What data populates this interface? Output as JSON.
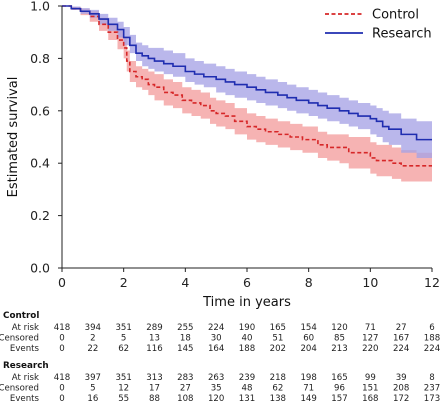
{
  "chart_data": {
    "type": "line",
    "subtype": "kaplan-meier-step",
    "ylabel": "Estimated survival",
    "xlabel": "Time in years",
    "xlim": [
      0,
      12
    ],
    "ylim": [
      0,
      1
    ],
    "x_ticks": [
      0,
      2,
      4,
      6,
      8,
      10,
      12
    ],
    "x_tick_labels": [
      "0",
      "2",
      "4",
      "6",
      "8",
      "10",
      "12"
    ],
    "y_ticks": [
      0,
      0.2,
      0.4,
      0.6,
      0.8,
      1.0
    ],
    "y_tick_labels": [
      "0.0",
      "0.2",
      "0.4",
      "0.6",
      "0.8",
      "1.0"
    ],
    "grid": false,
    "legend_position": "top-right",
    "series": [
      {
        "name": "Control",
        "color": "#d62728",
        "band_color": "#f4a6a6",
        "line_style": "dashed",
        "x": [
          0,
          0.3,
          0.6,
          0.9,
          1.2,
          1.5,
          1.8,
          2.0,
          2.1,
          2.2,
          2.4,
          2.6,
          2.8,
          3.0,
          3.3,
          3.6,
          3.9,
          4.2,
          4.5,
          4.8,
          5.0,
          5.3,
          5.6,
          6.0,
          6.3,
          6.6,
          7.0,
          7.4,
          7.8,
          8.0,
          8.3,
          8.6,
          9.0,
          9.3,
          9.6,
          10.0,
          10.2,
          10.4,
          10.7,
          11.0,
          11.5,
          12.0
        ],
        "values": [
          1.0,
          0.99,
          0.98,
          0.96,
          0.93,
          0.9,
          0.87,
          0.84,
          0.79,
          0.75,
          0.73,
          0.72,
          0.7,
          0.69,
          0.67,
          0.66,
          0.64,
          0.63,
          0.62,
          0.6,
          0.59,
          0.58,
          0.56,
          0.54,
          0.53,
          0.52,
          0.51,
          0.5,
          0.49,
          0.49,
          0.47,
          0.46,
          0.46,
          0.44,
          0.44,
          0.42,
          0.41,
          0.41,
          0.4,
          0.39,
          0.39,
          0.39
        ],
        "lower": [
          1.0,
          0.985,
          0.965,
          0.94,
          0.905,
          0.87,
          0.835,
          0.8,
          0.75,
          0.71,
          0.69,
          0.68,
          0.66,
          0.64,
          0.62,
          0.61,
          0.59,
          0.58,
          0.57,
          0.55,
          0.54,
          0.53,
          0.51,
          0.49,
          0.48,
          0.47,
          0.46,
          0.45,
          0.44,
          0.44,
          0.42,
          0.41,
          0.4,
          0.38,
          0.38,
          0.36,
          0.35,
          0.35,
          0.34,
          0.33,
          0.33,
          0.33
        ],
        "upper": [
          1.0,
          0.995,
          0.99,
          0.98,
          0.955,
          0.93,
          0.905,
          0.88,
          0.83,
          0.79,
          0.77,
          0.76,
          0.75,
          0.74,
          0.72,
          0.71,
          0.69,
          0.68,
          0.67,
          0.65,
          0.64,
          0.63,
          0.61,
          0.59,
          0.58,
          0.57,
          0.56,
          0.55,
          0.54,
          0.54,
          0.52,
          0.51,
          0.51,
          0.5,
          0.5,
          0.48,
          0.47,
          0.47,
          0.46,
          0.45,
          0.44,
          0.44
        ]
      },
      {
        "name": "Research",
        "color": "#1f2db0",
        "band_color": "#a7a3e6",
        "line_style": "solid",
        "x": [
          0,
          0.3,
          0.6,
          0.9,
          1.2,
          1.5,
          1.8,
          2.0,
          2.2,
          2.4,
          2.6,
          2.8,
          3.0,
          3.3,
          3.6,
          4.0,
          4.3,
          4.6,
          5.0,
          5.3,
          5.6,
          6.0,
          6.3,
          6.6,
          7.0,
          7.3,
          7.6,
          8.0,
          8.3,
          8.6,
          9.0,
          9.3,
          9.6,
          10.0,
          10.2,
          10.4,
          10.6,
          11.0,
          11.5,
          12.0
        ],
        "values": [
          1.0,
          0.99,
          0.98,
          0.97,
          0.95,
          0.93,
          0.91,
          0.88,
          0.85,
          0.82,
          0.81,
          0.8,
          0.79,
          0.78,
          0.77,
          0.75,
          0.74,
          0.73,
          0.72,
          0.71,
          0.7,
          0.69,
          0.68,
          0.67,
          0.66,
          0.65,
          0.64,
          0.63,
          0.62,
          0.61,
          0.6,
          0.59,
          0.58,
          0.57,
          0.56,
          0.54,
          0.53,
          0.51,
          0.49,
          0.49
        ],
        "lower": [
          1.0,
          0.985,
          0.97,
          0.955,
          0.93,
          0.905,
          0.88,
          0.85,
          0.82,
          0.79,
          0.77,
          0.76,
          0.75,
          0.74,
          0.73,
          0.71,
          0.7,
          0.69,
          0.67,
          0.66,
          0.65,
          0.64,
          0.63,
          0.62,
          0.61,
          0.6,
          0.59,
          0.58,
          0.57,
          0.56,
          0.55,
          0.54,
          0.53,
          0.51,
          0.5,
          0.48,
          0.47,
          0.44,
          0.42,
          0.42
        ],
        "upper": [
          1.0,
          0.998,
          0.992,
          0.985,
          0.97,
          0.955,
          0.94,
          0.92,
          0.89,
          0.86,
          0.85,
          0.84,
          0.84,
          0.83,
          0.82,
          0.8,
          0.79,
          0.78,
          0.77,
          0.76,
          0.75,
          0.74,
          0.73,
          0.72,
          0.71,
          0.7,
          0.69,
          0.68,
          0.67,
          0.66,
          0.65,
          0.64,
          0.63,
          0.62,
          0.61,
          0.6,
          0.59,
          0.57,
          0.56,
          0.56
        ]
      }
    ],
    "risk_table": {
      "row_labels": [
        "At risk",
        "Censored",
        "Events"
      ],
      "groups": [
        {
          "name": "Control",
          "at_risk": [
            "418",
            "394",
            "351",
            "289",
            "255",
            "224",
            "190",
            "165",
            "154",
            "120",
            "71",
            "27",
            "6"
          ],
          "censored": [
            "0",
            "2",
            "5",
            "13",
            "18",
            "30",
            "40",
            "51",
            "60",
            "85",
            "127",
            "167",
            "188"
          ],
          "events": [
            "0",
            "22",
            "62",
            "116",
            "145",
            "164",
            "188",
            "202",
            "204",
            "213",
            "220",
            "224",
            "224"
          ]
        },
        {
          "name": "Research",
          "at_risk": [
            "418",
            "397",
            "351",
            "313",
            "283",
            "263",
            "239",
            "218",
            "198",
            "165",
            "99",
            "39",
            "8"
          ],
          "censored": [
            "0",
            "5",
            "12",
            "17",
            "27",
            "35",
            "48",
            "62",
            "71",
            "96",
            "151",
            "208",
            "237"
          ],
          "events": [
            "0",
            "16",
            "55",
            "88",
            "108",
            "120",
            "131",
            "138",
            "149",
            "157",
            "168",
            "172",
            "173"
          ]
        }
      ]
    }
  }
}
